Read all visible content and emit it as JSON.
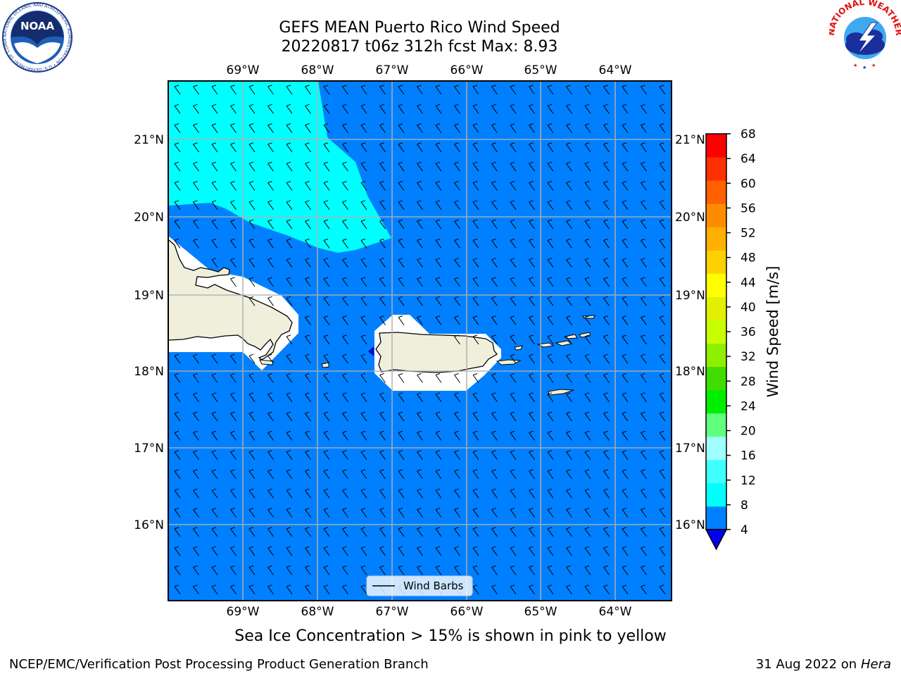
{
  "title": {
    "line1": "GEFS MEAN Puerto Rico Wind Speed",
    "line2": "20220817 t06z 312h fcst   Max: 8.93"
  },
  "map": {
    "lon_labels": [
      "69°W",
      "68°W",
      "67°W",
      "66°W",
      "65°W",
      "64°W"
    ],
    "lat_labels": [
      "21°N",
      "20°N",
      "19°N",
      "18°N",
      "17°N",
      "16°N"
    ],
    "gridlines": true,
    "background_speed_band": "4-8 m/s",
    "ocean_color": "#0080ff",
    "strong_wind_color": "#00ffff",
    "land_color": "#efefdc"
  },
  "legend": {
    "label": "Wind Barbs"
  },
  "colorbar": {
    "label": "Wind Speed [m/s]",
    "ticks": [
      "68",
      "64",
      "60",
      "56",
      "52",
      "48",
      "44",
      "40",
      "36",
      "32",
      "28",
      "24",
      "20",
      "16",
      "12",
      "8",
      "4"
    ],
    "colors": [
      "#0080ff",
      "#00ffff",
      "#40ffff",
      "#a0ffff",
      "#60ff80",
      "#00ee00",
      "#40dd00",
      "#90ee00",
      "#c8ff00",
      "#e0f000",
      "#ffff00",
      "#ffd000",
      "#ffb000",
      "#ff8c00",
      "#ff6000",
      "#ff3000",
      "#ff0000"
    ],
    "under_color": "#0000ee"
  },
  "footnote": "Sea Ice Concentration > 15% is shown in pink to yellow",
  "credits": {
    "left": "NCEP/EMC/Verification Post Processing Product Generation Branch",
    "right_date": "31 Aug 2022 on",
    "right_host": "Hera"
  },
  "logos": {
    "noaa": {
      "text": "NOAA",
      "ring_text": "NATIONAL OCEANIC AND ATMOSPHERIC ADMINISTRATION • U.S. DEPARTMENT OF COMMERCE"
    },
    "nws": {
      "ring_text": "NATIONAL WEATHER SERVICE"
    }
  }
}
